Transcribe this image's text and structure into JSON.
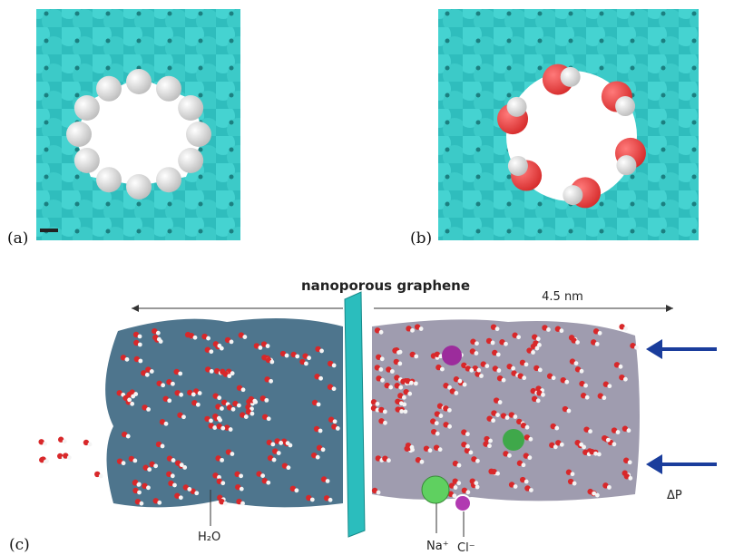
{
  "figure": {
    "panels": [
      {
        "label": "(a)"
      },
      {
        "label": "(b)"
      },
      {
        "label": "(c)"
      }
    ],
    "annotations": {
      "membrane": "nanoporous graphene",
      "length": "4.5 nm",
      "water": "H₂O",
      "sodium": "Na⁺",
      "chloride": "Cl⁻",
      "pressure": "ΔP"
    }
  }
}
